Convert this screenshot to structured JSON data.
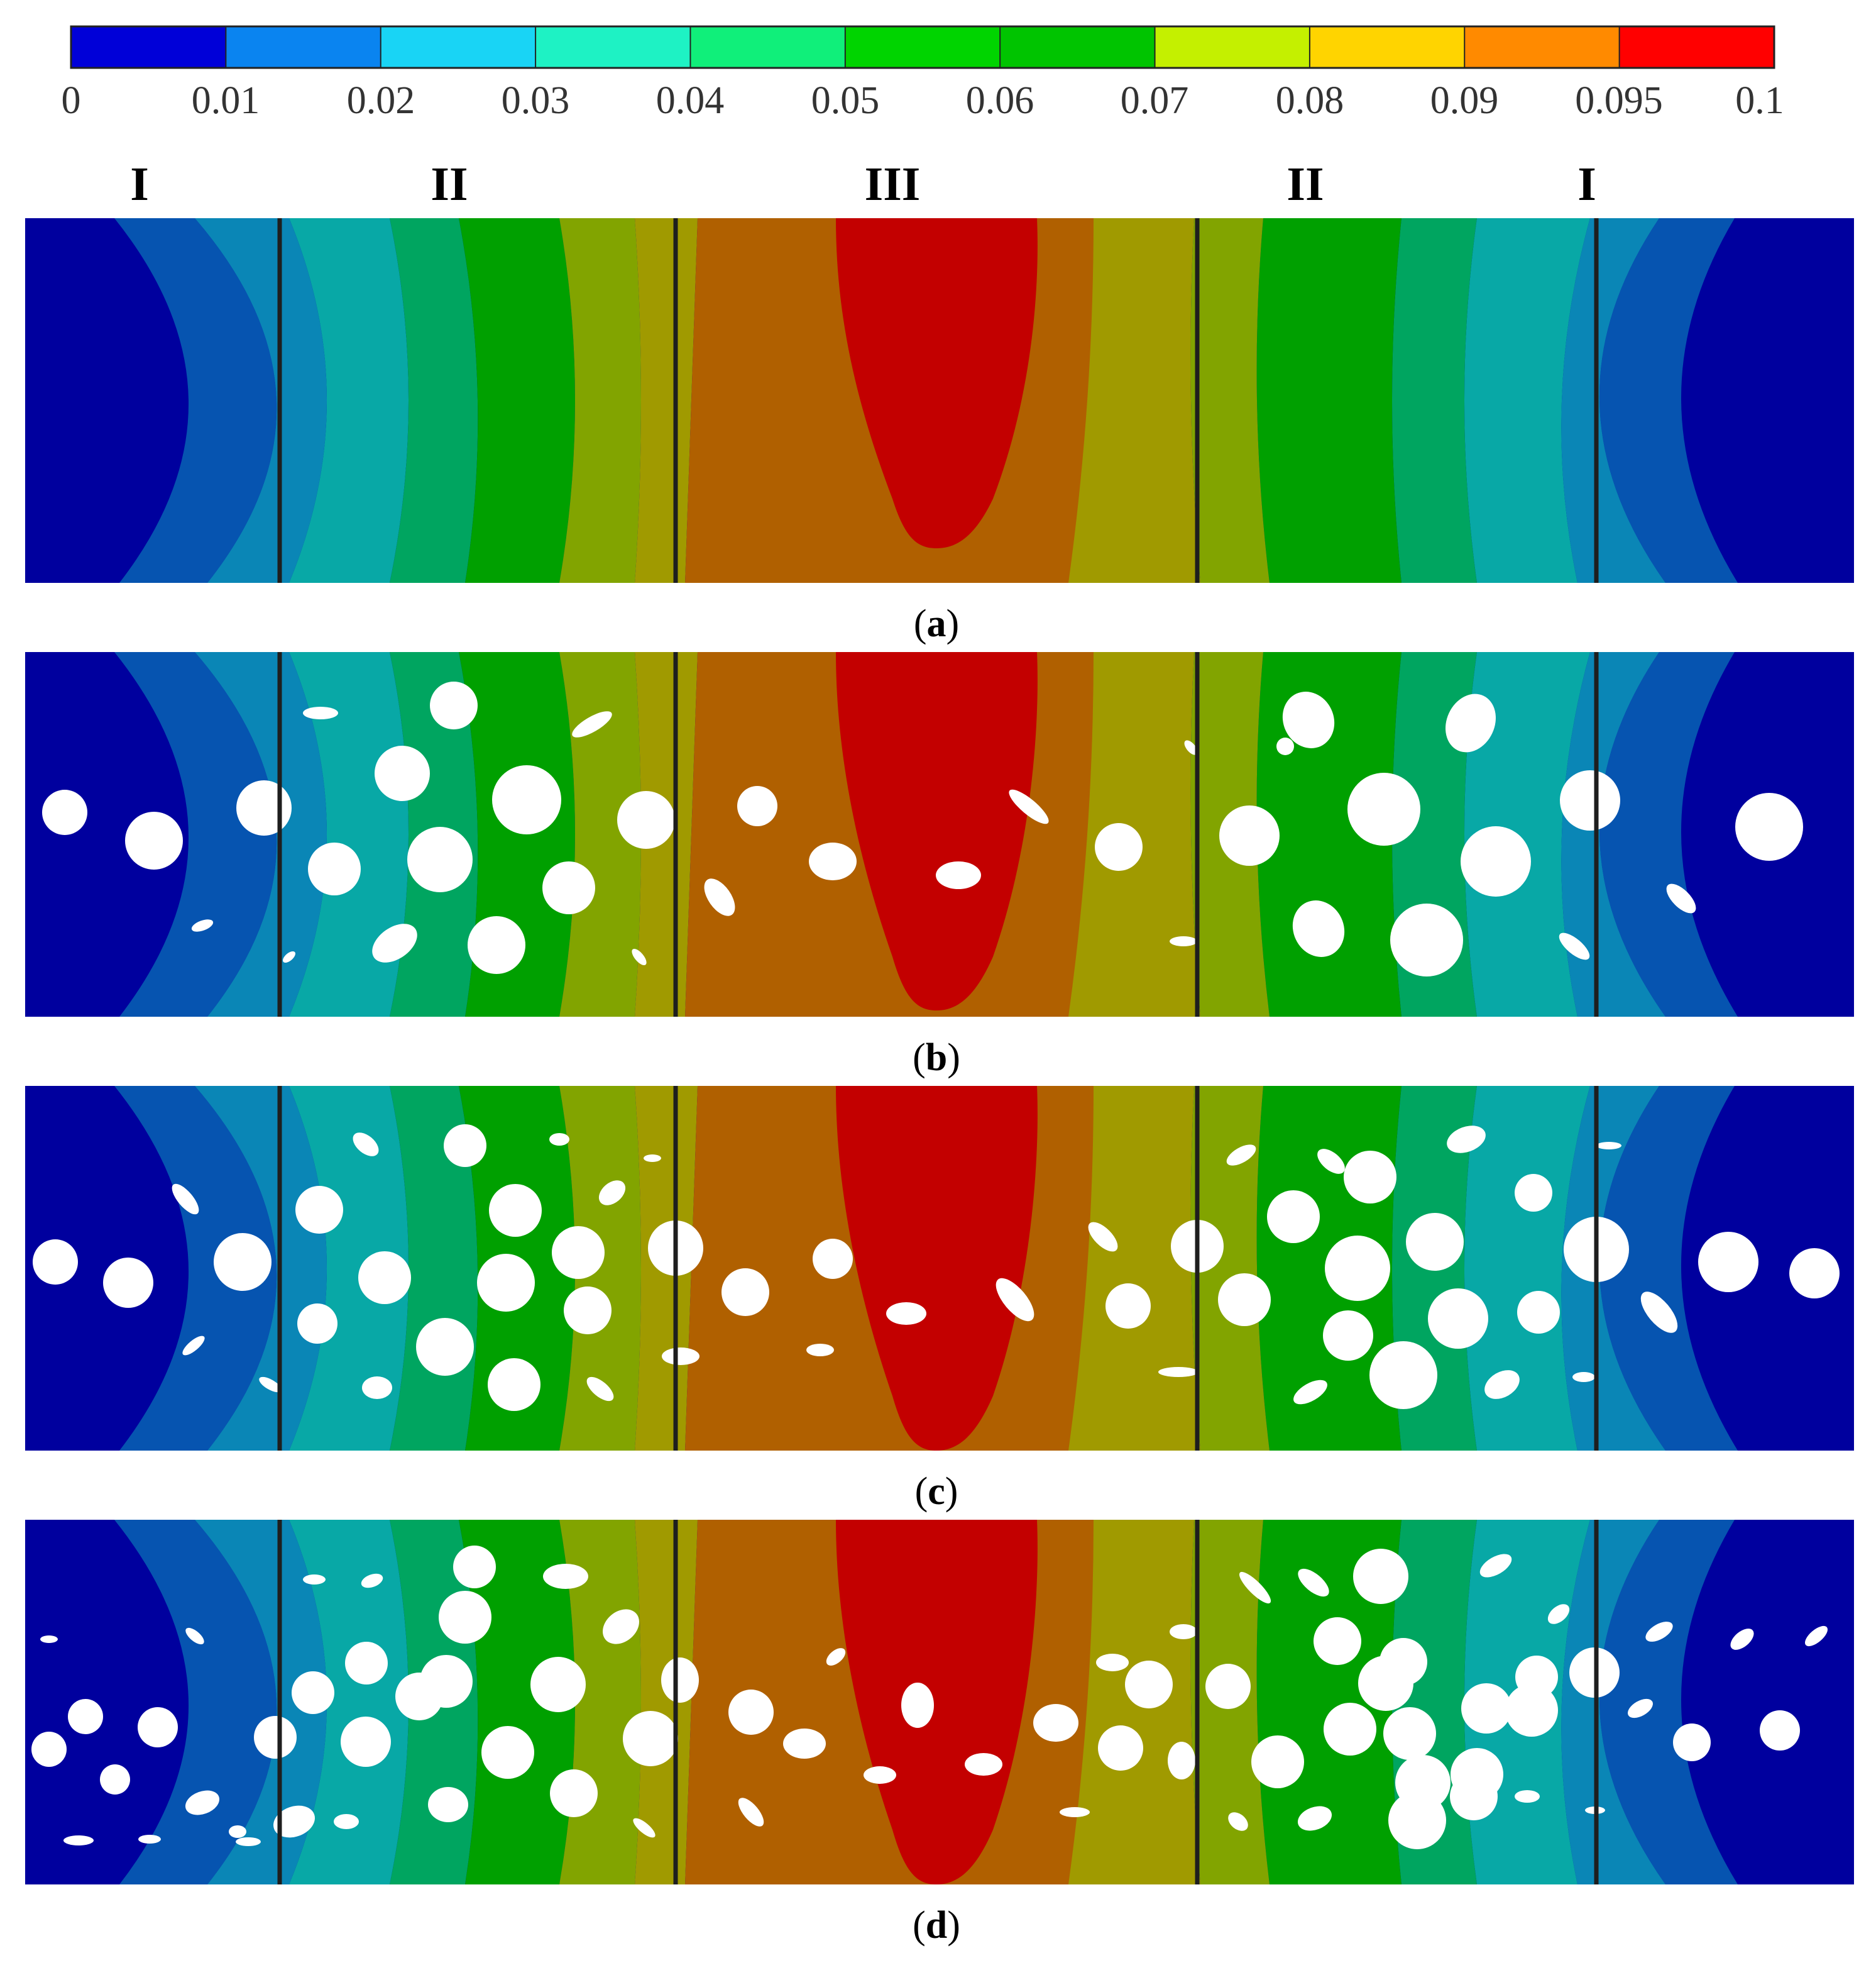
{
  "colorbar": {
    "ticks": [
      "0",
      "0.01",
      "0.02",
      "0.03",
      "0.04",
      "0.05",
      "0.06",
      "0.07",
      "0.08",
      "0.09",
      "0.095",
      "0.1"
    ],
    "colors": [
      "#0000d8",
      "#0a84f0",
      "#19d4f5",
      "#1ef2c4",
      "#10ef7a",
      "#00d400",
      "#00c400",
      "#c4f000",
      "#ffd400",
      "#ff8a00",
      "#ff0000"
    ]
  },
  "zones": {
    "colors": [
      "#00009e",
      "#0654b0",
      "#0a86b6",
      "#08a8a6",
      "#00a560",
      "#00a000",
      "#82a400",
      "#a09a00",
      "#b06000",
      "#c30000"
    ]
  },
  "region_labels": [
    "I",
    "II",
    "III",
    "II",
    "I"
  ],
  "panels": [
    {
      "id": "a",
      "caption_open": "(",
      "caption_key": "a",
      "caption_close": ")"
    },
    {
      "id": "b",
      "caption_open": "(",
      "caption_key": "b",
      "caption_close": ")"
    },
    {
      "id": "c",
      "caption_open": "(",
      "caption_key": "c",
      "caption_close": ")"
    },
    {
      "id": "d",
      "caption_open": "(",
      "caption_key": "d",
      "caption_close": ")"
    }
  ]
}
